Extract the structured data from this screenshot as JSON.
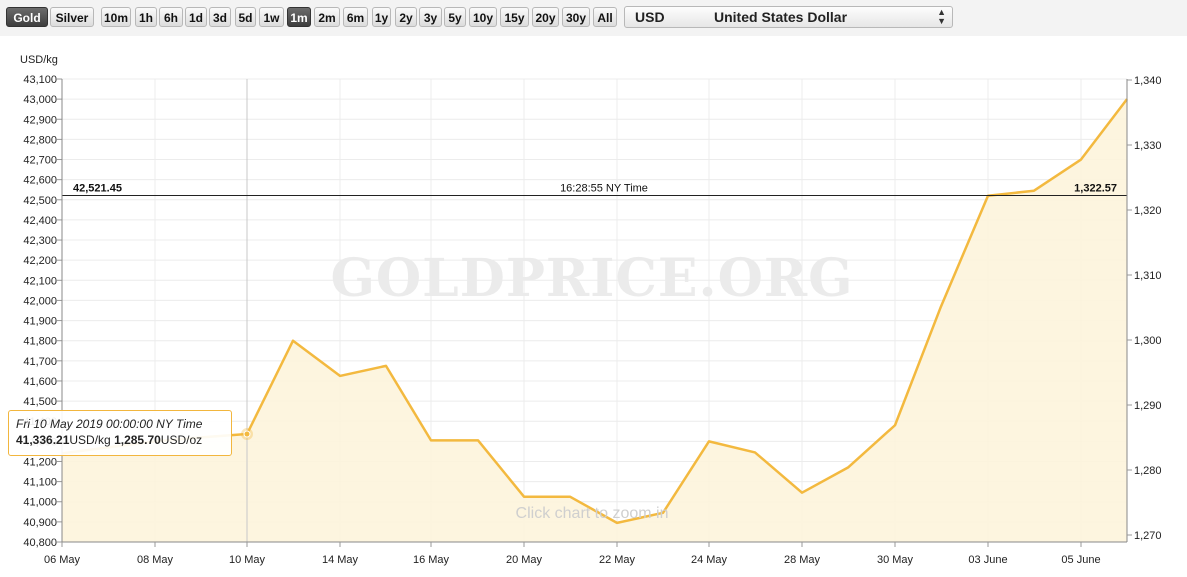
{
  "toolbar": {
    "metals": [
      {
        "label": "Gold",
        "active": true
      },
      {
        "label": "Silver",
        "active": false
      }
    ],
    "ranges": [
      {
        "label": "10m",
        "active": false
      },
      {
        "label": "1h",
        "active": false
      },
      {
        "label": "6h",
        "active": false
      },
      {
        "label": "1d",
        "active": false
      },
      {
        "label": "3d",
        "active": false
      },
      {
        "label": "5d",
        "active": false
      },
      {
        "label": "1w",
        "active": false
      },
      {
        "label": "1m",
        "active": true
      },
      {
        "label": "2m",
        "active": false
      },
      {
        "label": "6m",
        "active": false
      },
      {
        "label": "1y",
        "active": false
      },
      {
        "label": "2y",
        "active": false
      },
      {
        "label": "3y",
        "active": false
      },
      {
        "label": "5y",
        "active": false
      },
      {
        "label": "10y",
        "active": false
      },
      {
        "label": "15y",
        "active": false
      },
      {
        "label": "20y",
        "active": false
      },
      {
        "label": "30y",
        "active": false
      },
      {
        "label": "All",
        "active": false
      }
    ],
    "currency": {
      "code": "USD",
      "name": "United States Dollar"
    }
  },
  "chart_data": {
    "type": "area",
    "ylabel": "USD/kg",
    "x": [
      "06 May",
      "07 May",
      "08 May",
      "09 May",
      "10 May",
      "13 May",
      "14 May",
      "15 May",
      "16 May",
      "17 May",
      "20 May",
      "21 May",
      "22 May",
      "23 May",
      "24 May",
      "27 May",
      "28 May",
      "29 May",
      "30 May",
      "31 May",
      "03 June",
      "04 June",
      "05 June",
      "06 June"
    ],
    "values": [
      41240,
      41270,
      41300,
      41320,
      41336.21,
      41800,
      41625,
      41675,
      41305,
      41305,
      41025,
      41025,
      40895,
      40945,
      41300,
      41245,
      41045,
      41170,
      41380,
      41970,
      42520,
      42545,
      42700,
      43000
    ],
    "x_tick_labels": [
      "06 May",
      "08 May",
      "10 May",
      "14 May",
      "16 May",
      "20 May",
      "22 May",
      "24 May",
      "28 May",
      "30 May",
      "03 June",
      "05 June"
    ],
    "y_left": {
      "min": 40800,
      "max": 43100,
      "step": 100,
      "unit": "USD/kg"
    },
    "y_right": {
      "ticks": [
        "1,270",
        "1,280",
        "1,290",
        "1,300",
        "1,310",
        "1,320",
        "1,330",
        "1,340"
      ],
      "unit": "USD/oz"
    },
    "current": {
      "left_label": "42,521.45",
      "time_label": "16:28:55 NY Time",
      "right_label": "1,322.57",
      "value": 42521.45
    },
    "tooltip": {
      "date": "Fri 10 May 2019 00:00:00 NY Time",
      "kg_value": "41,336.21",
      "kg_unit": "USD/kg",
      "oz_value": "1,285.70",
      "oz_unit": "USD/oz",
      "index": 4
    },
    "watermark": "GOLDPRICE.ORG",
    "hint": "Click chart to zoom in",
    "grid": true,
    "series_color": "#f3b93f",
    "fill_color": "#fdf4db"
  }
}
